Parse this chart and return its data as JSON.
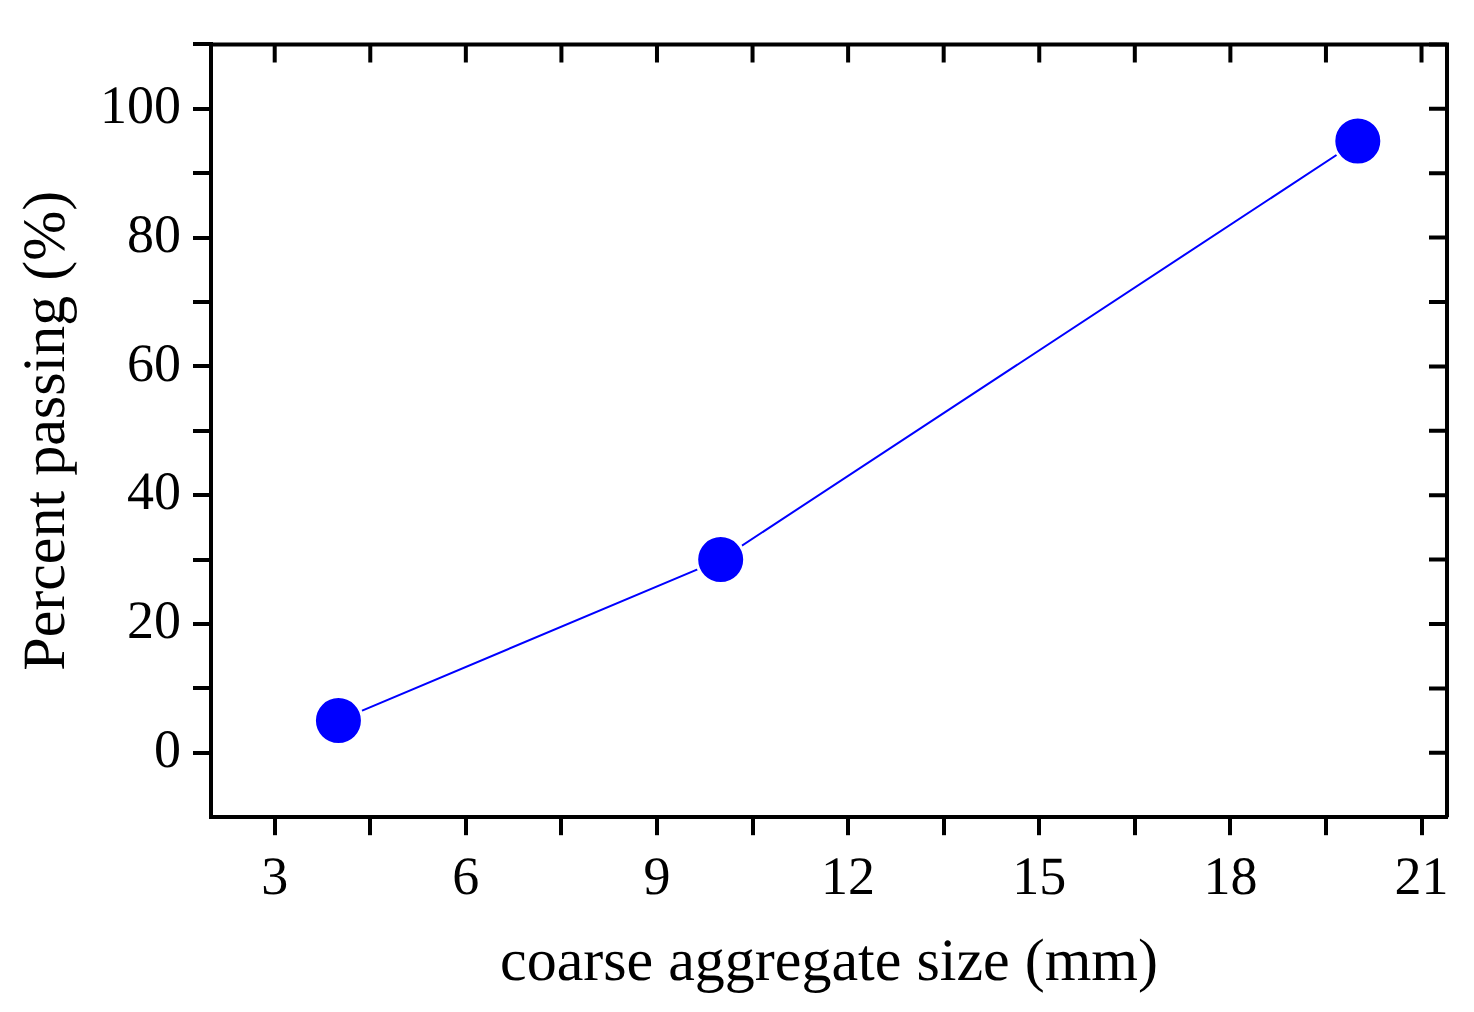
{
  "chart_data": {
    "type": "line",
    "xlabel": "coarse aggregate size (mm)",
    "ylabel": "Percent passing (%)",
    "x": [
      4,
      10,
      20
    ],
    "series": [
      {
        "color": "#0000ff",
        "values": [
          5,
          30,
          95
        ]
      }
    ],
    "marker": "circle",
    "line_style": "solid",
    "grid": false,
    "legend": false,
    "xlim": [
      2,
      21.4
    ],
    "ylim": [
      -10,
      110
    ],
    "xticks": [
      3,
      {
        "value": 4.5,
        "label": null
      },
      6,
      {
        "value": 7.5,
        "label": null
      },
      9,
      {
        "value": 10.5,
        "label": null
      },
      12,
      {
        "value": 13.5,
        "label": null
      },
      15,
      {
        "value": 16.5,
        "label": null
      },
      18,
      {
        "value": 19.5,
        "label": null
      },
      21
    ],
    "yticks": [
      0,
      {
        "value": 10,
        "label": null
      },
      20,
      {
        "value": 30,
        "label": null
      },
      40,
      {
        "value": 50,
        "label": null
      },
      60,
      {
        "value": 70,
        "label": null
      },
      80,
      {
        "value": 90,
        "label": null
      },
      100,
      {
        "value": 110,
        "label": null
      }
    ]
  }
}
